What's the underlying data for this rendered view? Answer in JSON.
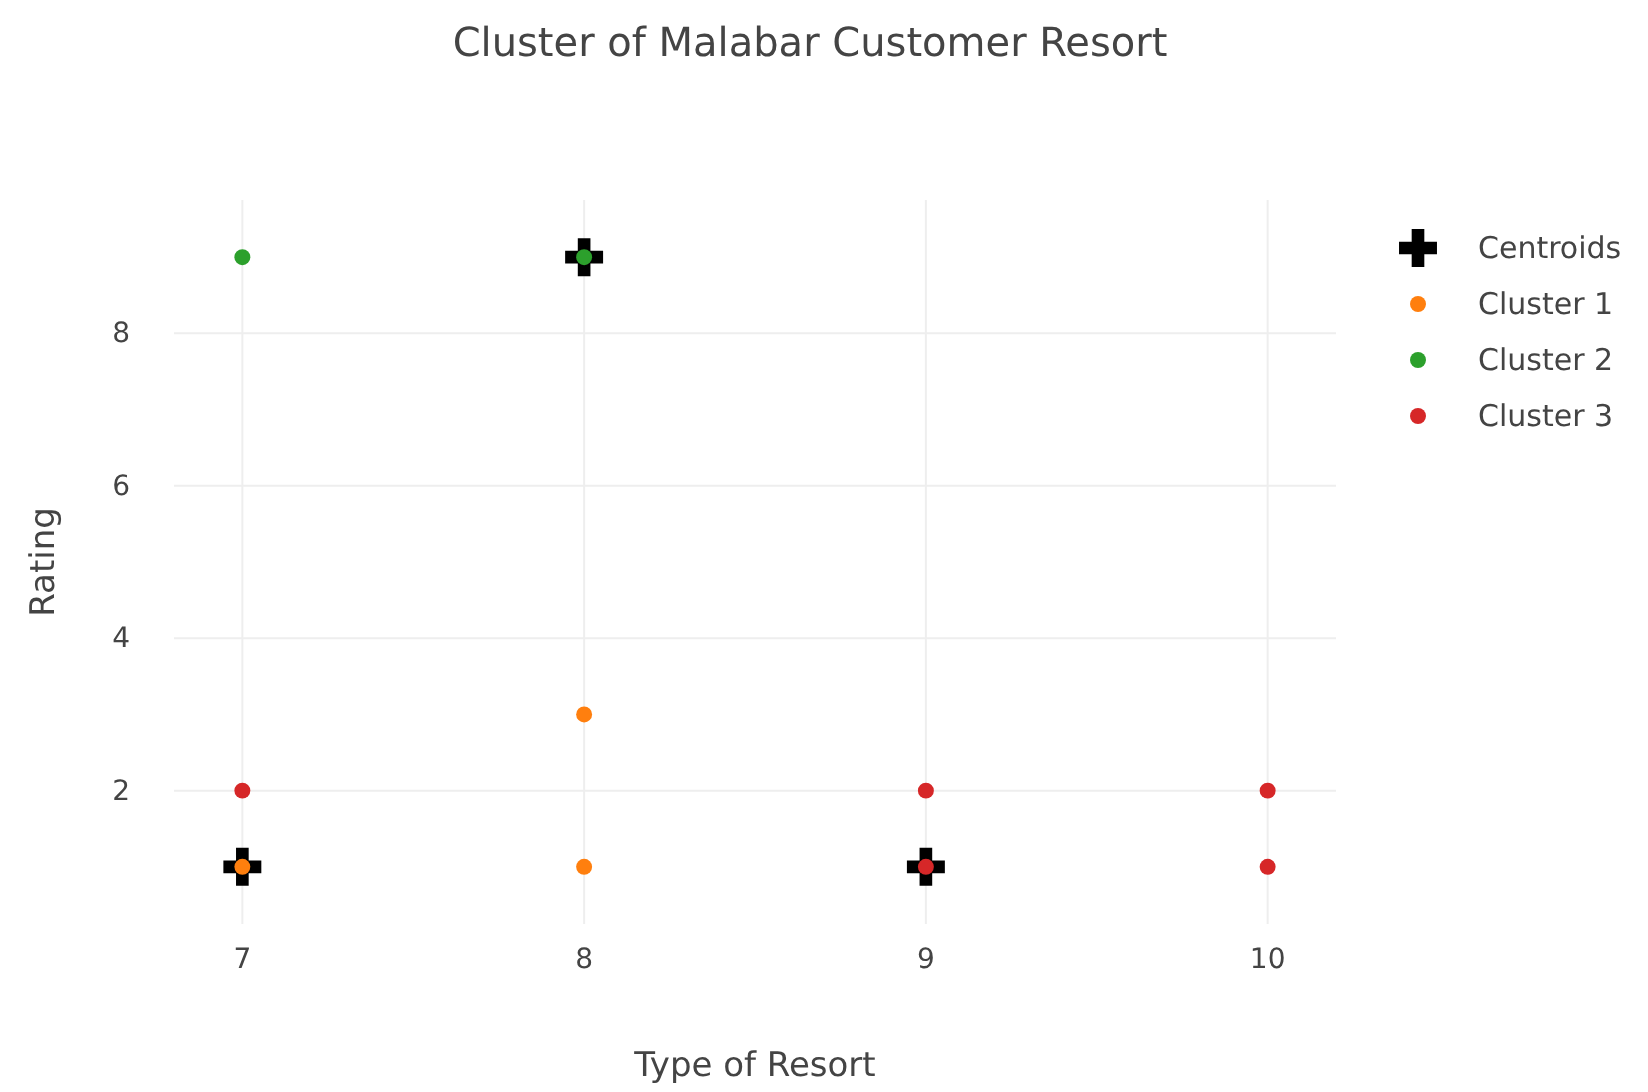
{
  "chart_data": {
    "type": "scatter",
    "title": "Cluster of Malabar Customer Resort",
    "xlabel": "Type of Resort",
    "ylabel": "Rating",
    "xlim": [
      6.8,
      10.2
    ],
    "xticks": [
      7,
      8,
      9,
      10
    ],
    "ylim": [
      0.25,
      9.75
    ],
    "yticks": [
      2,
      4,
      6,
      8
    ],
    "grid": true,
    "legend": "top right",
    "series": [
      {
        "name": "Centroids",
        "color": "#000000",
        "marker": "cross",
        "x": [
          7,
          8,
          9
        ],
        "values": [
          1,
          9,
          1
        ]
      },
      {
        "name": "Cluster 1",
        "color": "#ff7f0e",
        "marker": "circle",
        "x": [
          7,
          8,
          8
        ],
        "values": [
          1,
          1,
          3
        ]
      },
      {
        "name": "Cluster 2",
        "color": "#2ca02c",
        "marker": "circle",
        "x": [
          7,
          8
        ],
        "values": [
          9,
          9
        ]
      },
      {
        "name": "Cluster 3",
        "color": "#d62728",
        "marker": "circle",
        "x": [
          7,
          9,
          9,
          10,
          10
        ],
        "values": [
          2,
          2,
          1,
          2,
          1
        ]
      }
    ]
  }
}
